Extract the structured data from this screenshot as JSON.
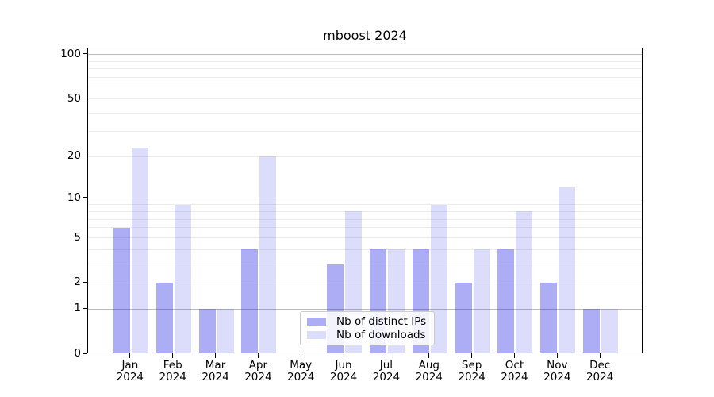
{
  "chart_data": {
    "type": "bar",
    "title": "mboost 2024",
    "year": "2024",
    "categories": [
      "Jan",
      "Feb",
      "Mar",
      "Apr",
      "May",
      "Jun",
      "Jul",
      "Aug",
      "Sep",
      "Oct",
      "Nov",
      "Dec"
    ],
    "series": [
      {
        "name": "Nb of distinct IPs",
        "color": "#2828e6",
        "alpha": 0.38,
        "visible_color": "#a9a9f3",
        "values": [
          6,
          2,
          1,
          4,
          0,
          3,
          4,
          4,
          2,
          4,
          2,
          1
        ]
      },
      {
        "name": "Nb of downloads",
        "color": "#2828e6",
        "alpha": 0.16,
        "visible_color": "#dbdbf8",
        "values": [
          23,
          9,
          1,
          20,
          0,
          8,
          4,
          9,
          4,
          8,
          12,
          1
        ]
      }
    ],
    "yscale": "log10(1+x)",
    "ylim": [
      0,
      110
    ],
    "xlabel": "",
    "ylabel": "",
    "y_ticks": [
      0,
      1,
      2,
      5,
      10,
      20,
      50,
      100
    ],
    "grid": true,
    "grid_major_values": [
      1,
      10,
      100
    ],
    "grid_minor_values": [
      2,
      3,
      4,
      5,
      6,
      7,
      8,
      9,
      20,
      30,
      40,
      50,
      60,
      70,
      80,
      90
    ],
    "legend_position": "lower center",
    "colors": {
      "grid_major": "#bdbdbd",
      "grid_minor": "#ececec",
      "spine": "#000000",
      "legend_border": "#cccccc",
      "background": "#ffffff"
    }
  }
}
